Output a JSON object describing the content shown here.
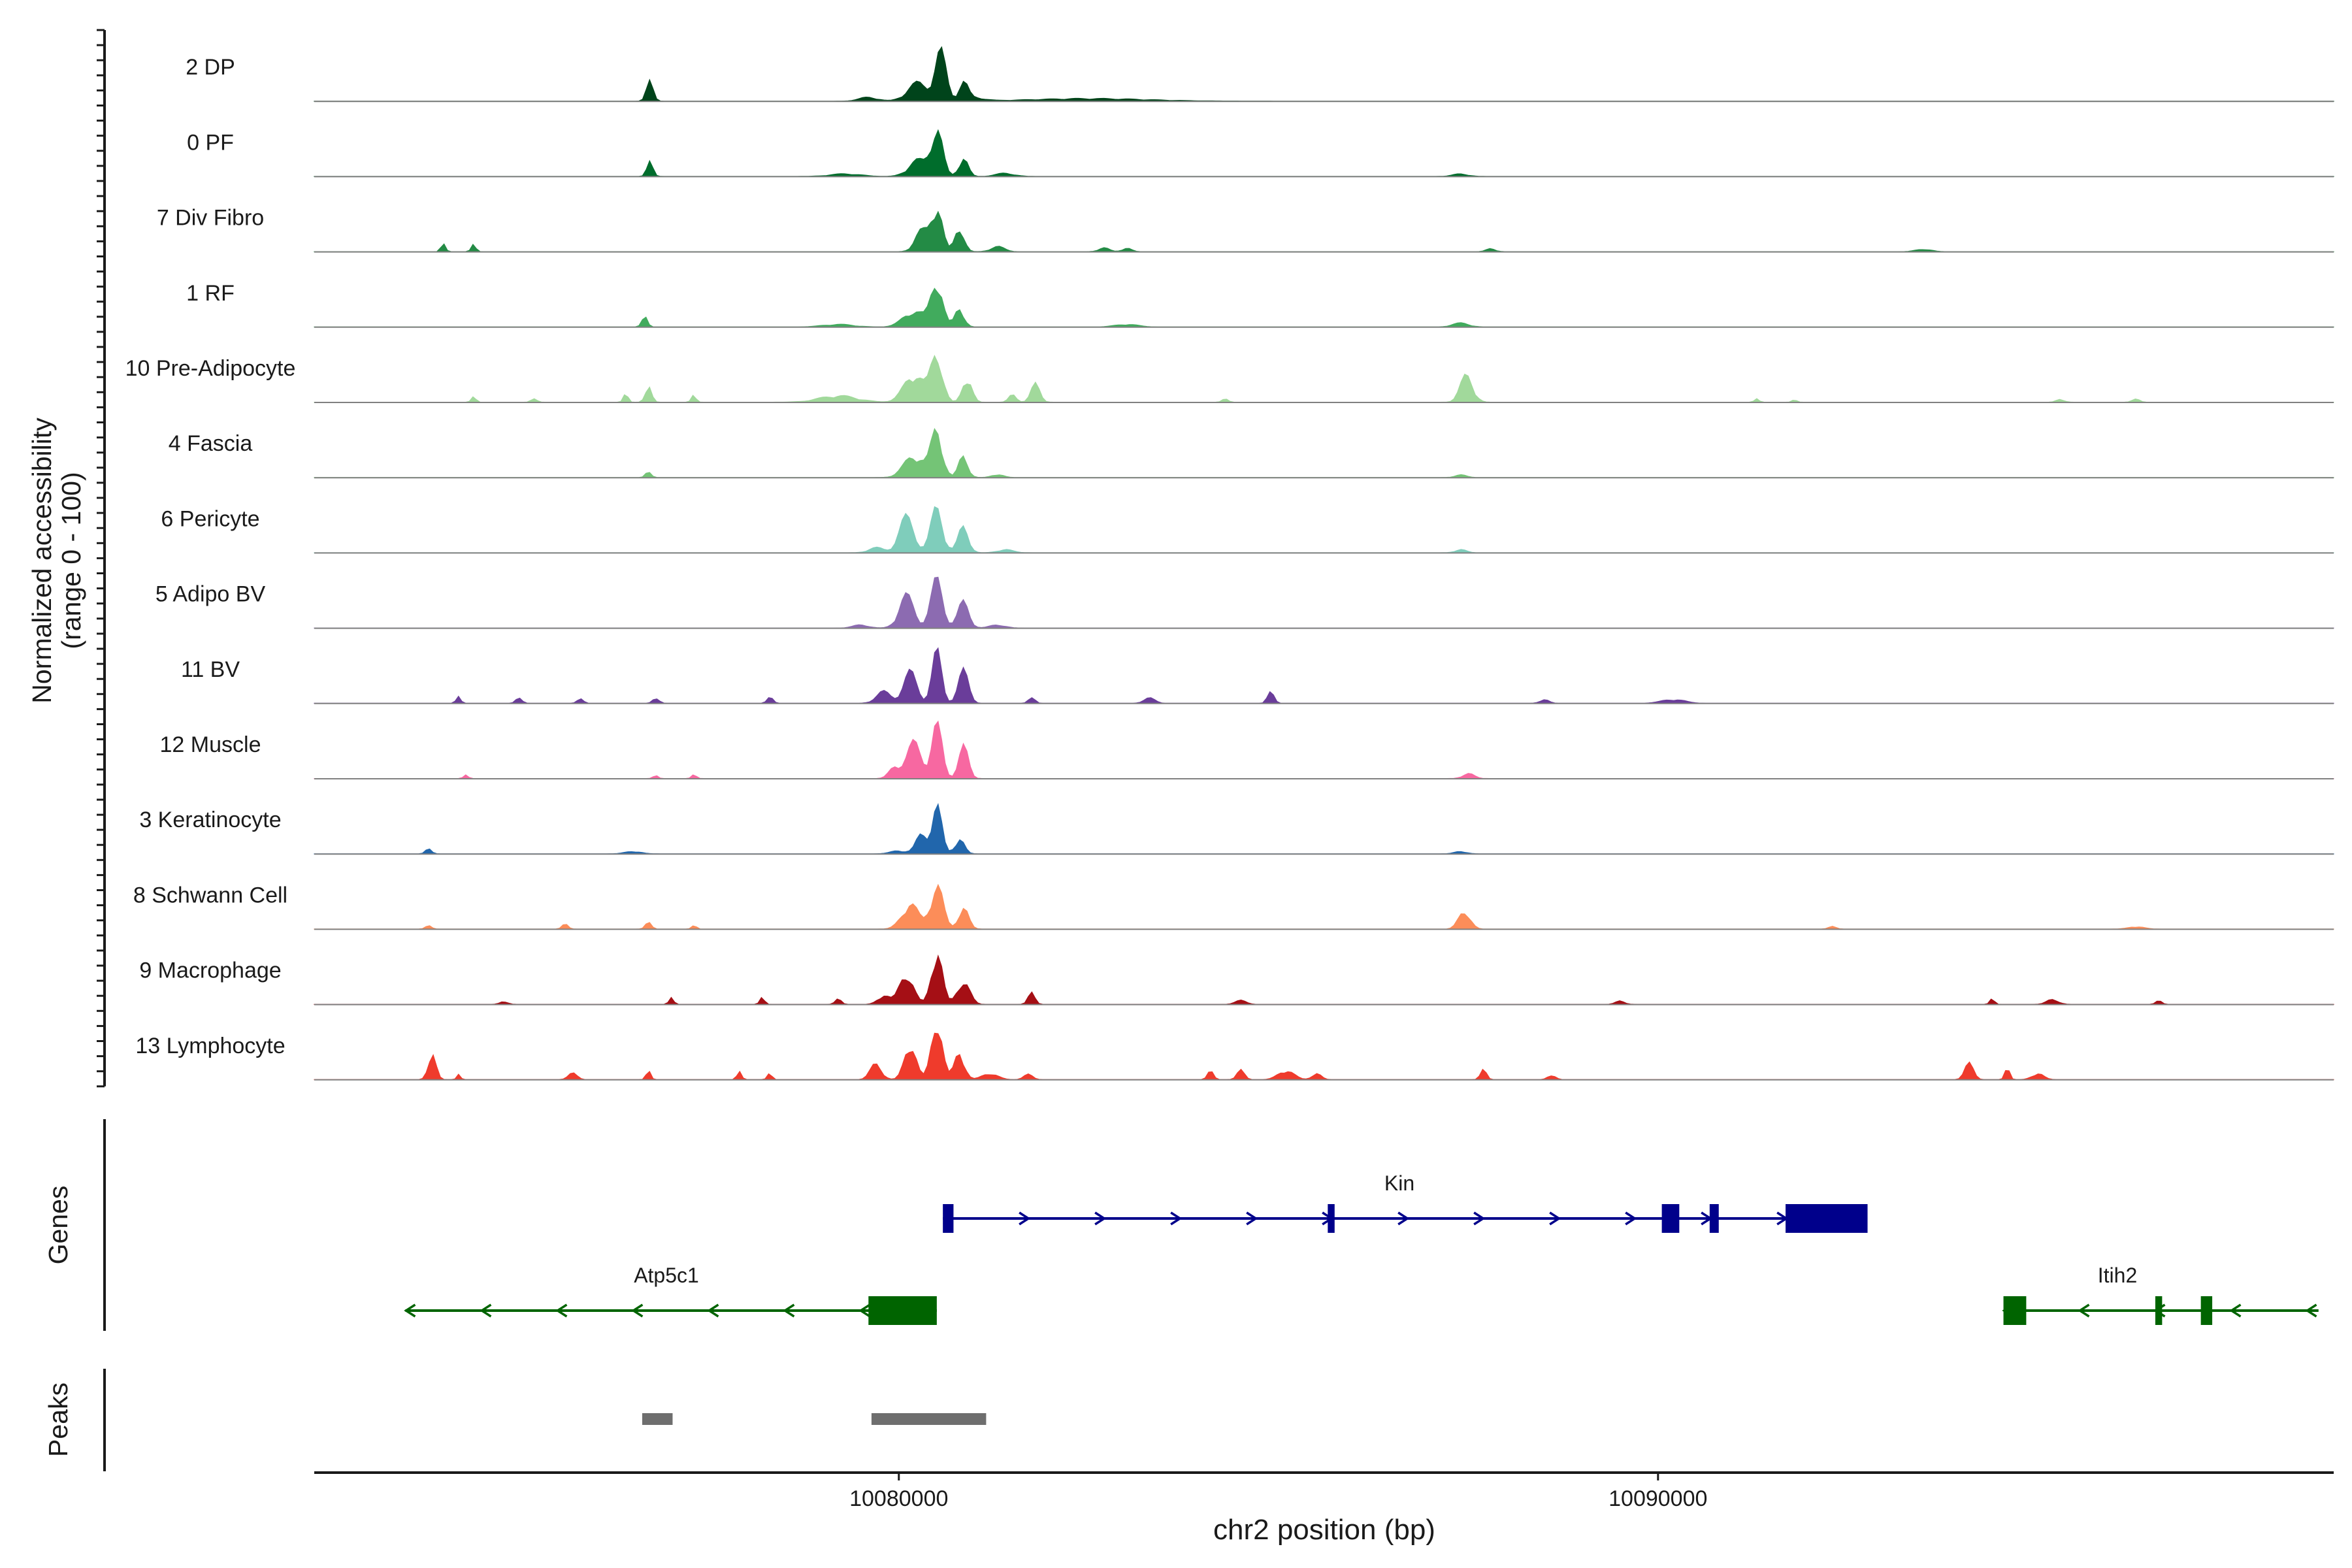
{
  "chart_data": {
    "type": "area",
    "chromosome": "chr2",
    "xlabel": "chr2 position (bp)",
    "ylabel_line1": "Normalized accessibility",
    "ylabel_line2": "(range 0 - 100)",
    "xlim": [
      10072300,
      10098900
    ],
    "x_ticks": [
      10080000,
      10090000
    ],
    "x_tick_labels": [
      "10080000",
      "10090000"
    ],
    "ylim": [
      0,
      100
    ],
    "track_panels": [
      "Genes",
      "Peaks"
    ],
    "series": [
      {
        "name": "2 DP",
        "color": "#00441B",
        "peaks": [
          [
            10076720,
            90,
            70,
            0.3
          ],
          [
            10080550,
            150,
            200,
            0.75
          ],
          [
            10080250,
            280,
            80,
            0.28
          ],
          [
            10080850,
            120,
            55,
            0.28
          ],
          [
            10081000,
            260,
            15,
            0.05
          ],
          [
            10079600,
            250,
            15,
            0.06
          ],
          [
            10082500,
            1500,
            5,
            0.04
          ]
        ]
      },
      {
        "name": "0 PF",
        "color": "#006D2C",
        "peaks": [
          [
            10076720,
            80,
            70,
            0.22
          ],
          [
            10080500,
            150,
            200,
            0.75
          ],
          [
            10080250,
            250,
            80,
            0.25
          ],
          [
            10080850,
            120,
            60,
            0.3
          ],
          [
            10081400,
            240,
            12,
            0.05
          ],
          [
            10087400,
            200,
            10,
            0.04
          ],
          [
            10079300,
            400,
            12,
            0.04
          ]
        ]
      },
      {
        "name": "7 Div Fibro",
        "color": "#238B45",
        "peaks": [
          [
            10074000,
            60,
            20,
            0.12
          ],
          [
            10074400,
            60,
            20,
            0.12
          ],
          [
            10080500,
            140,
            190,
            0.75
          ],
          [
            10080300,
            180,
            80,
            0.32
          ],
          [
            10080800,
            120,
            70,
            0.4
          ],
          [
            10081300,
            180,
            20,
            0.08
          ],
          [
            10082700,
            140,
            10,
            0.06
          ],
          [
            10083000,
            120,
            10,
            0.06
          ],
          [
            10087800,
            120,
            10,
            0.05
          ],
          [
            10093500,
            200,
            8,
            0.04
          ]
        ]
      },
      {
        "name": "1 RF",
        "color": "#41AB5D",
        "peaks": [
          [
            10076650,
            70,
            70,
            0.22
          ],
          [
            10080500,
            150,
            200,
            0.75
          ],
          [
            10080200,
            280,
            80,
            0.25
          ],
          [
            10080800,
            120,
            60,
            0.3
          ],
          [
            10087400,
            220,
            12,
            0.06
          ],
          [
            10079200,
            400,
            12,
            0.04
          ],
          [
            10083000,
            300,
            8,
            0.04
          ]
        ]
      },
      {
        "name": "10 Pre-Adipocyte",
        "color": "#A1D99B",
        "peaks": [
          [
            10080500,
            150,
            180,
            0.78
          ],
          [
            10080200,
            260,
            100,
            0.45
          ],
          [
            10080900,
            120,
            70,
            0.42
          ],
          [
            10081800,
            120,
            60,
            0.28
          ],
          [
            10087480,
            170,
            90,
            0.42
          ],
          [
            10076700,
            80,
            40,
            0.3
          ],
          [
            10076400,
            60,
            25,
            0.14
          ],
          [
            10077300,
            60,
            25,
            0.12
          ],
          [
            10079200,
            500,
            20,
            0.1
          ],
          [
            10074400,
            60,
            25,
            0.08
          ],
          [
            10075200,
            80,
            20,
            0.06
          ],
          [
            10081500,
            100,
            20,
            0.12
          ],
          [
            10084300,
            80,
            15,
            0.05
          ],
          [
            10091300,
            60,
            15,
            0.05
          ],
          [
            10091800,
            60,
            15,
            0.05
          ],
          [
            10095300,
            100,
            15,
            0.05
          ],
          [
            10096300,
            100,
            15,
            0.05
          ]
        ]
      },
      {
        "name": "4 Fascia",
        "color": "#74C476",
        "peaks": [
          [
            10080500,
            150,
            180,
            0.75
          ],
          [
            10080200,
            260,
            80,
            0.35
          ],
          [
            10080850,
            120,
            60,
            0.35
          ],
          [
            10076700,
            70,
            40,
            0.12
          ],
          [
            10081300,
            150,
            15,
            0.05
          ],
          [
            10087400,
            150,
            10,
            0.04
          ]
        ]
      },
      {
        "name": "6 Pericyte",
        "color": "#7FCDBB",
        "peaks": [
          [
            10080500,
            160,
            180,
            0.7
          ],
          [
            10080100,
            200,
            120,
            0.55
          ],
          [
            10080850,
            140,
            70,
            0.4
          ],
          [
            10079700,
            200,
            30,
            0.08
          ],
          [
            10087400,
            150,
            10,
            0.05
          ],
          [
            10081400,
            200,
            15,
            0.05
          ]
        ]
      },
      {
        "name": "5 Adipo BV",
        "color": "#8C6BB1",
        "peaks": [
          [
            10080500,
            160,
            180,
            0.75
          ],
          [
            10080100,
            200,
            110,
            0.5
          ],
          [
            10080850,
            150,
            70,
            0.4
          ],
          [
            10081300,
            200,
            15,
            0.05
          ],
          [
            10079500,
            200,
            15,
            0.05
          ]
        ]
      },
      {
        "name": "11 BV",
        "color": "#6A3D9A",
        "peaks": [
          [
            10080500,
            130,
            180,
            0.8
          ],
          [
            10080150,
            180,
            100,
            0.48
          ],
          [
            10080850,
            140,
            90,
            0.5
          ],
          [
            10079800,
            200,
            40,
            0.18
          ],
          [
            10081750,
            80,
            30,
            0.12
          ],
          [
            10084900,
            80,
            60,
            0.25
          ],
          [
            10074200,
            60,
            30,
            0.1
          ],
          [
            10075000,
            80,
            30,
            0.1
          ],
          [
            10075800,
            80,
            30,
            0.08
          ],
          [
            10076800,
            80,
            30,
            0.1
          ],
          [
            10078300,
            80,
            30,
            0.1
          ],
          [
            10083300,
            150,
            25,
            0.08
          ],
          [
            10088500,
            120,
            20,
            0.06
          ],
          [
            10090200,
            300,
            25,
            0.06
          ]
        ]
      },
      {
        "name": "12 Muscle",
        "color": "#F768A1",
        "peaks": [
          [
            10080500,
            140,
            180,
            0.85
          ],
          [
            10080200,
            200,
            100,
            0.55
          ],
          [
            10080850,
            130,
            90,
            0.5
          ],
          [
            10079950,
            150,
            40,
            0.18
          ],
          [
            10087500,
            150,
            30,
            0.08
          ],
          [
            10074300,
            60,
            25,
            0.06
          ],
          [
            10076800,
            60,
            25,
            0.06
          ],
          [
            10077300,
            60,
            25,
            0.06
          ]
        ]
      },
      {
        "name": "3 Keratinocyte",
        "color": "#2166AC",
        "peaks": [
          [
            10080500,
            130,
            180,
            0.75
          ],
          [
            10080300,
            150,
            70,
            0.3
          ],
          [
            10080800,
            120,
            50,
            0.25
          ],
          [
            10073800,
            80,
            30,
            0.08
          ],
          [
            10076500,
            200,
            15,
            0.04
          ],
          [
            10080000,
            200,
            15,
            0.05
          ],
          [
            10087400,
            150,
            10,
            0.04
          ]
        ]
      },
      {
        "name": "8 Schwann Cell",
        "color": "#FC8D59",
        "peaks": [
          [
            10080500,
            160,
            180,
            0.72
          ],
          [
            10080150,
            220,
            100,
            0.4
          ],
          [
            10080850,
            130,
            70,
            0.35
          ],
          [
            10087450,
            150,
            70,
            0.3
          ],
          [
            10073800,
            80,
            20,
            0.06
          ],
          [
            10075600,
            80,
            25,
            0.08
          ],
          [
            10076700,
            80,
            30,
            0.1
          ],
          [
            10077300,
            60,
            25,
            0.07
          ],
          [
            10092300,
            100,
            15,
            0.04
          ],
          [
            10096300,
            200,
            15,
            0.04
          ]
        ]
      },
      {
        "name": "9 Macrophage",
        "color": "#A50F15",
        "peaks": [
          [
            10080500,
            140,
            180,
            0.9
          ],
          [
            10080100,
            180,
            100,
            0.5
          ],
          [
            10080850,
            160,
            100,
            0.38
          ],
          [
            10081750,
            90,
            40,
            0.18
          ],
          [
            10079800,
            150,
            30,
            0.15
          ],
          [
            10077000,
            60,
            30,
            0.12
          ],
          [
            10078200,
            60,
            30,
            0.1
          ],
          [
            10079200,
            80,
            25,
            0.08
          ],
          [
            10074800,
            100,
            20,
            0.05
          ],
          [
            10084500,
            150,
            25,
            0.06
          ],
          [
            10089500,
            120,
            20,
            0.05
          ],
          [
            10094400,
            60,
            20,
            0.08
          ],
          [
            10095200,
            150,
            20,
            0.08
          ],
          [
            10096600,
            80,
            20,
            0.06
          ]
        ]
      },
      {
        "name": "13 Lymphocyte",
        "color": "#EF3B2C",
        "peaks": [
          [
            10080500,
            140,
            180,
            1.0
          ],
          [
            10080150,
            150,
            120,
            0.6
          ],
          [
            10080800,
            130,
            100,
            0.45
          ],
          [
            10079700,
            150,
            70,
            0.25
          ],
          [
            10073850,
            100,
            50,
            0.45
          ],
          [
            10074200,
            50,
            30,
            0.1
          ],
          [
            10075700,
            120,
            35,
            0.1
          ],
          [
            10076700,
            60,
            40,
            0.15
          ],
          [
            10077900,
            60,
            35,
            0.12
          ],
          [
            10078300,
            60,
            35,
            0.1
          ],
          [
            10081200,
            200,
            40,
            0.1
          ],
          [
            10081700,
            120,
            40,
            0.08
          ],
          [
            10084100,
            80,
            30,
            0.15
          ],
          [
            10084500,
            100,
            40,
            0.15
          ],
          [
            10085100,
            200,
            40,
            0.15
          ],
          [
            10085500,
            120,
            35,
            0.1
          ],
          [
            10087700,
            80,
            40,
            0.15
          ],
          [
            10088600,
            100,
            40,
            0.08
          ],
          [
            10094100,
            120,
            40,
            0.25
          ],
          [
            10094600,
            60,
            40,
            0.25
          ],
          [
            10095000,
            150,
            40,
            0.1
          ]
        ]
      }
    ],
    "genes": [
      {
        "name": "Kin",
        "strand": "+",
        "color": "#00008B",
        "start": 10080580,
        "end": 10092760,
        "exons": [
          [
            10080580,
            10080720
          ],
          [
            10085650,
            10085740
          ],
          [
            10090050,
            10090280
          ],
          [
            10090680,
            10090800
          ],
          [
            10091680,
            10092760
          ]
        ]
      },
      {
        "name": "Atp5c1",
        "strand": "-",
        "color": "#006400",
        "start": 10073500,
        "end": 10080500,
        "exons": [
          [
            10079600,
            10080500
          ]
        ]
      },
      {
        "name": "Itih2",
        "strand": "-",
        "color": "#006400",
        "start": 10094550,
        "end": 10098700,
        "exons": [
          [
            10094550,
            10094850
          ],
          [
            10096550,
            10096640
          ],
          [
            10097150,
            10097300
          ]
        ]
      }
    ],
    "peaks": [
      [
        10076620,
        10077020
      ],
      [
        10079640,
        10081150
      ]
    ]
  }
}
